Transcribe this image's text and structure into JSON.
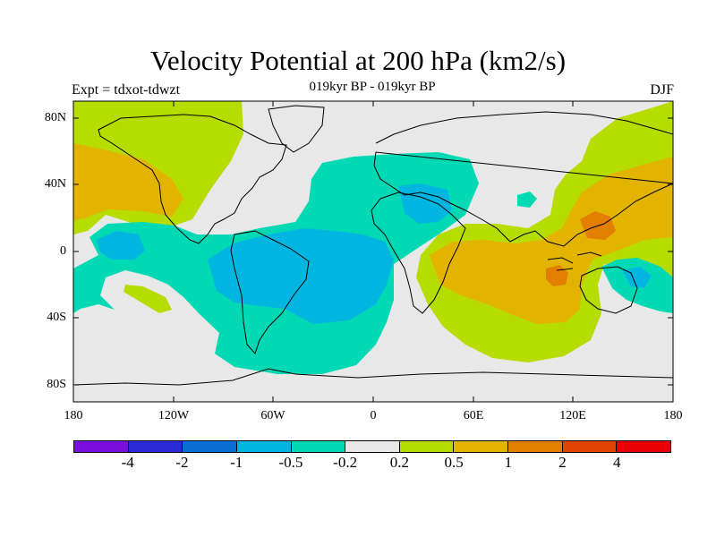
{
  "title": "Velocity Potential at 200 hPa (km2/s)",
  "subtitle": "019kyr BP - 019kyr BP",
  "experiment": "Expt = tdxot-tdwzt",
  "season": "DJF",
  "axes": {
    "lon_ticks": [
      "180",
      "120W",
      "60W",
      "0",
      "60E",
      "120E",
      "180"
    ],
    "lat_ticks": [
      "80N",
      "40N",
      "0",
      "40S",
      "80S"
    ]
  },
  "colorbar": {
    "labels": [
      "-4",
      "-2",
      "-1",
      "-0.5",
      "-0.2",
      "0.2",
      "0.5",
      "1",
      "2",
      "4"
    ],
    "colors": [
      "#7a0fe0",
      "#2a2ad6",
      "#0a6fd6",
      "#00b5e0",
      "#00d9b4",
      "#e8e8e8",
      "#b6dc00",
      "#e2b400",
      "#e27e00",
      "#e04400",
      "#e80000"
    ]
  },
  "field_colors": {
    "neutral": "#e8e8e8",
    "neg_weak": "#00d9b4",
    "neg_mod": "#00b5e0",
    "pos_weak": "#b6dc00",
    "pos_mod": "#e2b400",
    "pos_strong": "#e27e00"
  }
}
